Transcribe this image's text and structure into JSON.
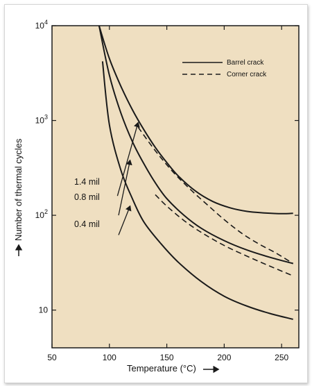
{
  "colors": {
    "plot_background": "#efdfc1",
    "line": "#1a1a1a",
    "page_background": "#ffffff"
  },
  "chart_data": {
    "type": "line",
    "xlabel": "Temperature (°C)",
    "ylabel": "Number of thermal cycles",
    "xlim": [
      50,
      265
    ],
    "ylim": [
      10000,
      4
    ],
    "y_scale": "log",
    "x_ticks": [
      "50",
      "100",
      "150",
      "200",
      "250"
    ],
    "y_ticks": [
      "10",
      "10^2",
      "10^3",
      "10^4"
    ],
    "grid": false,
    "legend": {
      "position": "top-right",
      "entries": [
        {
          "label": "Barrel crack",
          "style": "solid"
        },
        {
          "label": "Corner crack",
          "style": "dashed"
        }
      ]
    },
    "annotations": [
      "1.4 mil",
      "0.8 mil",
      "0.4 mil"
    ],
    "series": [
      {
        "group": "1.4 mil",
        "style": "solid",
        "x": [
          91,
          100,
          110,
          120,
          130,
          140,
          150,
          160,
          175,
          190,
          205,
          220,
          235,
          250,
          260
        ],
        "y": [
          10000,
          4500,
          2300,
          1300,
          800,
          520,
          360,
          260,
          180,
          140,
          120,
          110,
          106,
          104,
          105
        ]
      },
      {
        "group": "1.4 mil",
        "style": "dashed",
        "x": [
          125,
          140,
          155,
          170,
          185,
          200,
          215,
          230,
          245,
          260
        ],
        "y": [
          850,
          480,
          290,
          190,
          130,
          90,
          65,
          50,
          40,
          31
        ]
      },
      {
        "group": "0.8 mil",
        "style": "solid",
        "x": [
          91,
          100,
          110,
          120,
          130,
          140,
          150,
          165,
          180,
          200,
          220,
          240,
          260
        ],
        "y": [
          10000,
          3000,
          1200,
          600,
          350,
          220,
          150,
          100,
          73,
          54,
          43,
          36,
          31
        ]
      },
      {
        "group": "0.8 mil",
        "style": "dashed",
        "x": [
          140,
          150,
          165,
          180,
          200,
          220,
          240,
          260
        ],
        "y": [
          165,
          125,
          88,
          66,
          48,
          37,
          29,
          23
        ]
      },
      {
        "group": "0.4 mil",
        "style": "solid",
        "x": [
          94,
          100,
          110,
          120,
          130,
          145,
          160,
          180,
          200,
          220,
          240,
          260
        ],
        "y": [
          4200,
          900,
          300,
          150,
          85,
          50,
          32,
          20,
          14,
          11,
          9.2,
          8
        ]
      }
    ],
    "arrows": [
      {
        "label": "1.4 mil",
        "from": [
          107,
          160
        ],
        "to": [
          125,
          950
        ]
      },
      {
        "label": "0.8 mil",
        "from": [
          108,
          100
        ],
        "to": [
          118,
          380
        ]
      },
      {
        "label": "0.4 mil",
        "from": [
          108,
          62
        ],
        "to": [
          118,
          125
        ]
      }
    ]
  }
}
